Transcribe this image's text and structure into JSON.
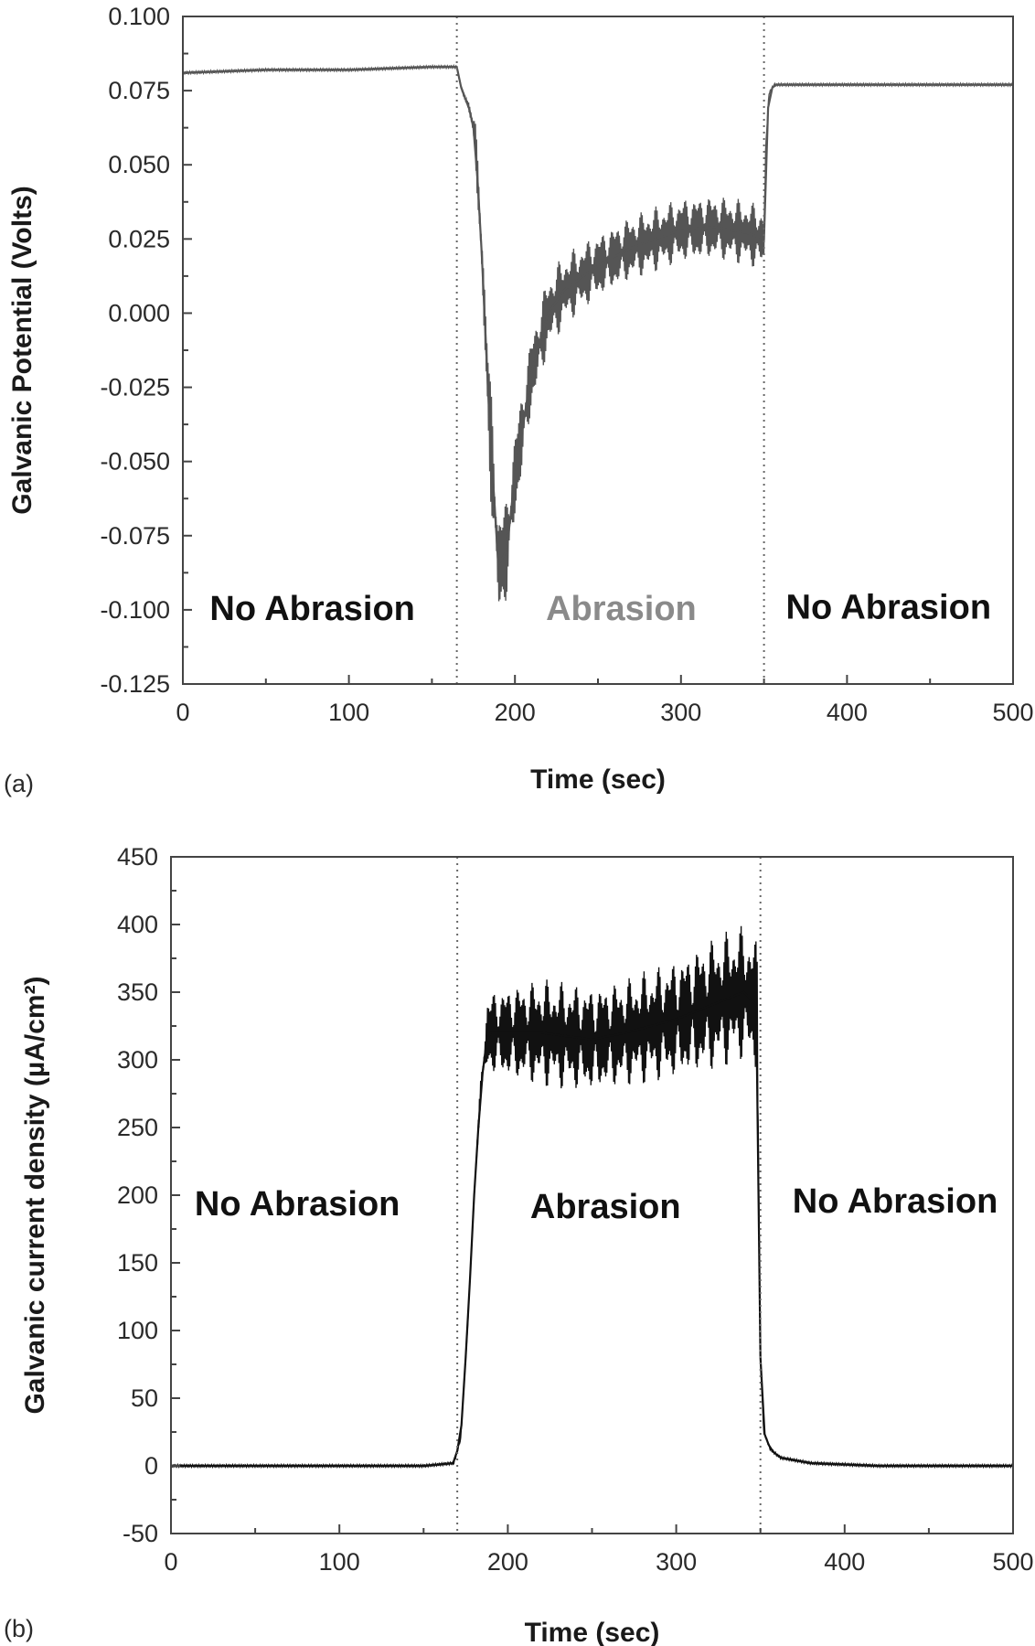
{
  "chart_data": [
    {
      "panel": "(a)",
      "type": "line",
      "xlabel": "Time  (sec)",
      "ylabel": "Galvanic Potential (Volts)",
      "xlim": [
        0,
        500
      ],
      "ylim": [
        -0.125,
        0.1
      ],
      "x_ticks": [
        0,
        100,
        200,
        300,
        400,
        500
      ],
      "x_tick_labels": [
        "0",
        "100",
        "200",
        "300",
        "400",
        "500"
      ],
      "y_ticks": [
        0.1,
        0.075,
        0.05,
        0.025,
        0.0,
        -0.025,
        -0.05,
        -0.075,
        -0.1,
        -0.125
      ],
      "y_tick_labels": [
        "0.100",
        "0.075",
        "0.050",
        "0.025",
        "0.000",
        "-0.025",
        "-0.050",
        "-0.075",
        "-0.100",
        "-0.125"
      ],
      "dividers": [
        165,
        350
      ],
      "regions": [
        {
          "label": "No Abrasion",
          "x": 78,
          "y": -0.1035,
          "color": "#111111"
        },
        {
          "label": "Abrasion",
          "x": 264,
          "y": -0.1035,
          "color": "#8a8a8a"
        },
        {
          "label": "No Abrasion",
          "x": 425,
          "y": -0.103,
          "color": "#111111"
        }
      ],
      "series": [
        {
          "color": "#555555",
          "x": [
            0,
            50,
            100,
            150,
            165,
            168,
            172,
            176,
            180,
            185,
            190,
            195,
            200,
            210,
            220,
            230,
            250,
            270,
            300,
            320,
            340,
            350,
            351,
            353,
            356,
            360,
            400,
            450,
            500
          ],
          "y": [
            0.081,
            0.082,
            0.082,
            0.083,
            0.083,
            0.075,
            0.07,
            0.06,
            0.02,
            -0.04,
            -0.085,
            -0.08,
            -0.055,
            -0.02,
            0.0,
            0.008,
            0.016,
            0.022,
            0.028,
            0.029,
            0.027,
            0.025,
            0.055,
            0.074,
            0.077,
            0.077,
            0.077,
            0.077,
            0.077
          ],
          "band": [
            0,
            0,
            0,
            0,
            0,
            0,
            0.002,
            0.006,
            0.012,
            0.02,
            0.02,
            0.018,
            0.016,
            0.013,
            0.013,
            0.012,
            0.011,
            0.011,
            0.011,
            0.011,
            0.011,
            0.011,
            0,
            0,
            0,
            0,
            0,
            0,
            0
          ]
        }
      ]
    },
    {
      "panel": "(b)",
      "type": "line",
      "xlabel": "Time  (sec)",
      "ylabel": "Galvanic current density (µA/cm²)",
      "xlim": [
        0,
        500
      ],
      "ylim": [
        -50,
        450
      ],
      "x_ticks": [
        0,
        100,
        200,
        300,
        400,
        500
      ],
      "x_tick_labels": [
        "0",
        "100",
        "200",
        "300",
        "400",
        "500"
      ],
      "y_ticks": [
        450,
        400,
        350,
        300,
        250,
        200,
        150,
        100,
        50,
        0,
        -50
      ],
      "y_tick_labels": [
        "450",
        "400",
        "350",
        "300",
        "250",
        "200",
        "150",
        "100",
        "50",
        "0",
        "-50"
      ],
      "dividers": [
        170,
        350
      ],
      "regions": [
        {
          "label": "No Abrasion",
          "x": 75,
          "y": 185,
          "color": "#111111"
        },
        {
          "label": "Abrasion",
          "x": 258,
          "y": 183,
          "color": "#111111"
        },
        {
          "label": "No Abrasion",
          "x": 430,
          "y": 187,
          "color": "#111111"
        }
      ],
      "series": [
        {
          "color": "#111111",
          "x": [
            0,
            50,
            100,
            150,
            168,
            172,
            176,
            180,
            184,
            188,
            200,
            220,
            250,
            270,
            300,
            320,
            340,
            348,
            349,
            350,
            352,
            356,
            362,
            380,
            420,
            500
          ],
          "y": [
            0,
            0,
            0,
            0,
            2,
            20,
            100,
            200,
            280,
            320,
            320,
            320,
            315,
            320,
            330,
            340,
            350,
            340,
            200,
            80,
            25,
            12,
            6,
            2,
            0,
            0
          ],
          "band": [
            0,
            0,
            0,
            0,
            0,
            0,
            0,
            0,
            10,
            30,
            35,
            40,
            40,
            40,
            45,
            50,
            50,
            50,
            0,
            0,
            0,
            0,
            0,
            0,
            0,
            0
          ]
        }
      ]
    }
  ]
}
